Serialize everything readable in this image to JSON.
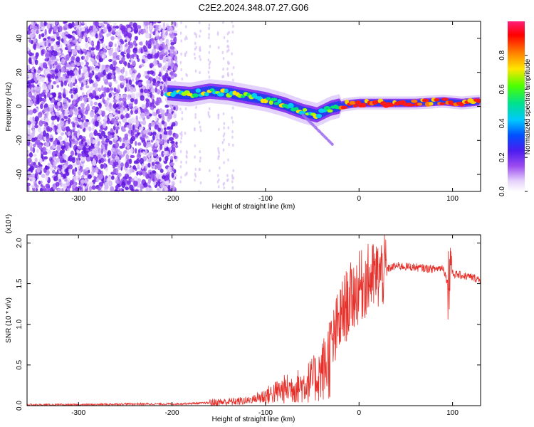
{
  "title": "C2E2.2024.348.07.27.G06",
  "chart_data": [
    {
      "type": "heatmap",
      "title": "C2E2.2024.348.07.27.G06",
      "xlabel": "Height of straight line (km)",
      "ylabel": "Frequency (Hz)",
      "xlim": [
        -355,
        130
      ],
      "ylim": [
        -50,
        50
      ],
      "xticks": [
        -300,
        -200,
        -100,
        0,
        100
      ],
      "yticks": [
        -40,
        -20,
        0,
        20,
        40
      ],
      "colorbar": {
        "label": "Normalized spectral amplitude",
        "range": [
          0,
          1
        ],
        "ticks": [
          0.0,
          0.2,
          0.4,
          0.6,
          0.8
        ],
        "colormap": [
          "#ffffff",
          "#c9a6f5",
          "#7b1fe6",
          "#1f3cff",
          "#00c8ff",
          "#00e66e",
          "#9bff00",
          "#ffe600",
          "#ff6a00",
          "#ff0000",
          "#ff0080"
        ]
      },
      "signal_track": [
        {
          "x": -205,
          "y": 8
        },
        {
          "x": -180,
          "y": 7
        },
        {
          "x": -160,
          "y": 9
        },
        {
          "x": -140,
          "y": 8
        },
        {
          "x": -120,
          "y": 6
        },
        {
          "x": -100,
          "y": 4
        },
        {
          "x": -80,
          "y": 1
        },
        {
          "x": -60,
          "y": -3
        },
        {
          "x": -45,
          "y": -5
        },
        {
          "x": -30,
          "y": -1
        },
        {
          "x": -15,
          "y": 1
        },
        {
          "x": 0,
          "y": 2
        },
        {
          "x": 30,
          "y": 2
        },
        {
          "x": 60,
          "y": 2
        },
        {
          "x": 90,
          "y": 3
        },
        {
          "x": 110,
          "y": 2
        },
        {
          "x": 130,
          "y": 3
        }
      ]
    },
    {
      "type": "line",
      "xlabel": "Height of straight line (km)",
      "ylabel": "SNR (10 * v/v)",
      "y_multiplier": "(x10⁴)",
      "xlim": [
        -355,
        130
      ],
      "ylim": [
        0,
        2.1
      ],
      "xticks": [
        -300,
        -200,
        -100,
        0,
        100
      ],
      "yticks": [
        0.0,
        0.5,
        1.0,
        1.5,
        2.0
      ],
      "line_color": "#e8302a",
      "series": [
        {
          "x": [
            -355,
            -300,
            -250,
            -200,
            -170,
            -150,
            -120,
            -100,
            -80,
            -60,
            -45,
            -35,
            -28,
            -22,
            -15,
            -10,
            0,
            10,
            20,
            30,
            40,
            60,
            80,
            90,
            95,
            98,
            100,
            110,
            120,
            130
          ],
          "y": [
            0.01,
            0.01,
            0.02,
            0.02,
            0.03,
            0.04,
            0.06,
            0.12,
            0.2,
            0.25,
            0.35,
            0.5,
            0.75,
            1.0,
            1.2,
            1.3,
            1.45,
            1.55,
            1.6,
            1.68,
            1.72,
            1.7,
            1.68,
            1.7,
            1.5,
            1.75,
            1.62,
            1.6,
            1.58,
            1.55
          ]
        }
      ]
    }
  ]
}
